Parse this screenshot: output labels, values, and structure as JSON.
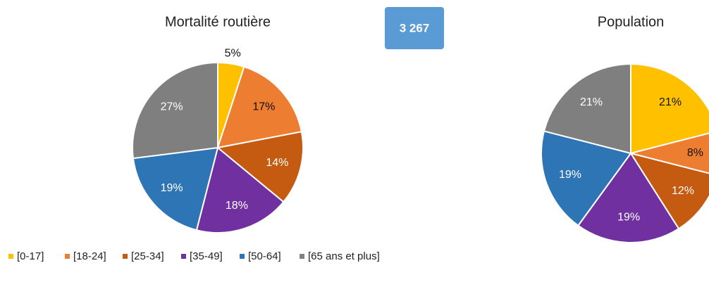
{
  "legend": {
    "categories": [
      "[0-17]",
      "[18-24]",
      "[25-34]",
      "[35-49]",
      "[50-64]",
      "[65 ans et plus]"
    ],
    "colors": [
      "#ffc000",
      "#ed7d31",
      "#c55a11",
      "#7030a0",
      "#2e75b6",
      "#7f7f7f"
    ]
  },
  "badge": "3 267",
  "chart_data": [
    {
      "type": "pie",
      "title": "Mortalité routière",
      "values": [
        5,
        17,
        14,
        18,
        19,
        27
      ],
      "value_labels": [
        "5%",
        "17%",
        "14%",
        "18%",
        "19%",
        "27%"
      ]
    },
    {
      "type": "pie",
      "title": "Population",
      "values": [
        21,
        8,
        12,
        19,
        19,
        21
      ],
      "value_labels": [
        "21%",
        "8%",
        "12%",
        "19%",
        "19%",
        "21%"
      ]
    }
  ]
}
